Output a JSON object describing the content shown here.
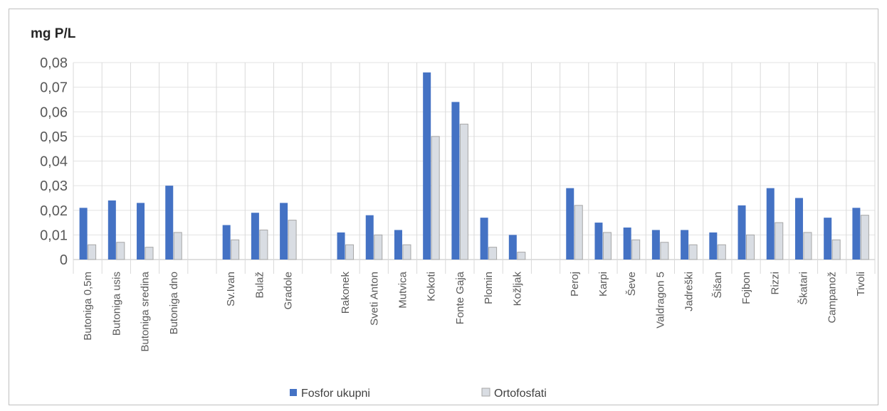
{
  "chart_data": {
    "type": "bar",
    "ylabel": "mg P/L",
    "ylim": [
      0,
      0.08
    ],
    "yticks": [
      0,
      0.01,
      0.02,
      0.03,
      0.04,
      0.05,
      0.06,
      0.07,
      0.08
    ],
    "ytick_labels": [
      "0",
      "0,01",
      "0,02",
      "0,03",
      "0,04",
      "0,05",
      "0,06",
      "0,07",
      "0,08"
    ],
    "grid": true,
    "legend_position": "bottom",
    "groups": [
      [
        "Butoniga 0,5m",
        "Butoniga usis",
        "Butoniga sredina",
        "Butoniga dno"
      ],
      [
        "Sv.Ivan",
        "Bulaž",
        "Gradole"
      ],
      [
        "Rakonek",
        "Sveti Anton",
        "Mutvica",
        "Kokoti",
        "Fonte Gaja",
        "Plomin",
        "Kožljak"
      ],
      [
        "Peroj",
        "Karpi",
        "Ševe",
        "Valdragon 5",
        "Jadreški",
        "Šišan",
        "Fojbon",
        "Rizzi",
        "Škatari",
        "Campanož",
        "Tivoli"
      ]
    ],
    "categories": [
      "Butoniga 0,5m",
      "Butoniga usis",
      "Butoniga sredina",
      "Butoniga dno",
      "",
      "Sv.Ivan",
      "Bulaž",
      "Gradole",
      "",
      "Rakonek",
      "Sveti Anton",
      "Mutvica",
      "Kokoti",
      "Fonte Gaja",
      "Plomin",
      "Kožljak",
      "",
      "Peroj",
      "Karpi",
      "Ševe",
      "Valdragon 5",
      "Jadreški",
      "Šišan",
      "Fojbon",
      "Rizzi",
      "Škatari",
      "Campanož",
      "Tivoli"
    ],
    "series": [
      {
        "name": "Fosfor ukupni",
        "color": "#4472c4",
        "values": [
          0.021,
          0.024,
          0.023,
          0.03,
          null,
          0.014,
          0.019,
          0.023,
          null,
          0.011,
          0.018,
          0.012,
          0.076,
          0.064,
          0.017,
          0.01,
          null,
          0.029,
          0.015,
          0.013,
          0.012,
          0.012,
          0.011,
          0.022,
          0.029,
          0.025,
          0.017,
          0.021
        ]
      },
      {
        "name": "Ortofosfati",
        "color": "#d9dde3",
        "values": [
          0.006,
          0.007,
          0.005,
          0.011,
          null,
          0.008,
          0.012,
          0.016,
          null,
          0.006,
          0.01,
          0.006,
          0.05,
          0.055,
          0.005,
          0.003,
          null,
          0.022,
          0.011,
          0.008,
          0.007,
          0.006,
          0.006,
          0.01,
          0.015,
          0.011,
          0.008,
          0.018
        ]
      }
    ]
  }
}
